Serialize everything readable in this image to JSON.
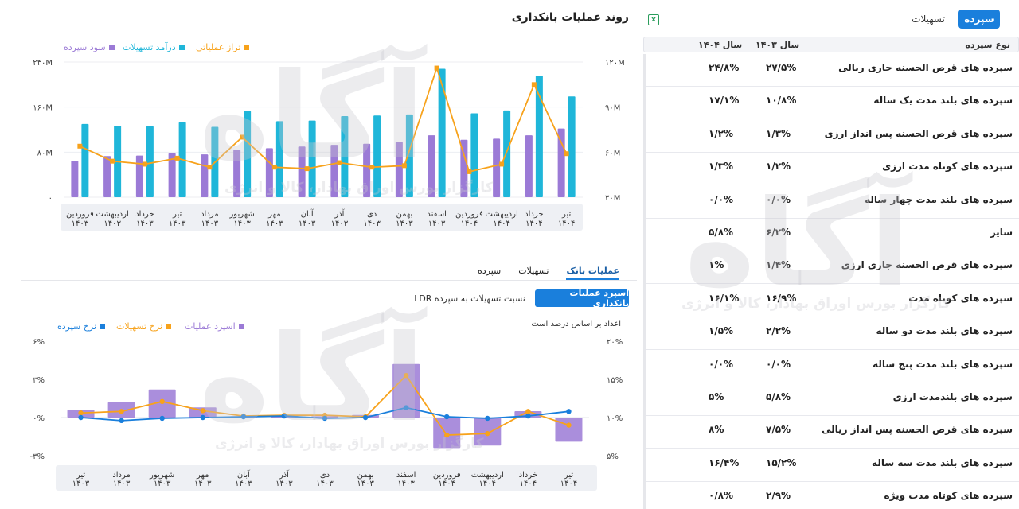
{
  "right_panel": {
    "tabs": {
      "deposit": "سپرده",
      "facilities": "تسهیلات"
    },
    "table_header": {
      "type": "نوع سپرده",
      "y1403": "سال ۱۴۰۳",
      "y1404": "سال ۱۴۰۴"
    },
    "rows": [
      {
        "name": "سپرده های قرض الحسنه جاری ریالی",
        "v1403": "۲۷/۵%",
        "v1404": "۲۴/۸%"
      },
      {
        "name": "سپرده های بلند مدت یک ساله",
        "v1403": "۱۰/۸%",
        "v1404": "۱۷/۱%"
      },
      {
        "name": "سپرده های قرض الحسنه پس انداز ارزی",
        "v1403": "۱/۳%",
        "v1404": "۱/۲%"
      },
      {
        "name": "سپرده های کوتاه مدت ارزی",
        "v1403": "۱/۲%",
        "v1404": "۱/۳%"
      },
      {
        "name": "سپرده های بلند مدت چهار ساله",
        "v1403": "۰/۰%",
        "v1404": "۰/۰%"
      },
      {
        "name": "سایر",
        "v1403": "۶/۲%",
        "v1404": "۵/۸%"
      },
      {
        "name": "سپرده های قرض الحسنه جاری ارزی",
        "v1403": "۱/۴%",
        "v1404": "۱%"
      },
      {
        "name": "سپرده های کوتاه مدت",
        "v1403": "۱۶/۹%",
        "v1404": "۱۶/۱%"
      },
      {
        "name": "سپرده های بلند مدت دو ساله",
        "v1403": "۲/۲%",
        "v1404": "۱/۵%"
      },
      {
        "name": "سپرده های بلند مدت پنج ساله",
        "v1403": "۰/۰%",
        "v1404": "۰/۰%"
      },
      {
        "name": "سپرده های بلندمدت ارزی",
        "v1403": "۵/۸%",
        "v1404": "۵%"
      },
      {
        "name": "سپرده های قرض الحسنه پس انداز ریالی",
        "v1403": "۷/۵%",
        "v1404": "۸%"
      },
      {
        "name": "سپرده های بلند مدت سه ساله",
        "v1403": "۱۵/۲%",
        "v1404": "۱۶/۴%"
      },
      {
        "name": "سپرده های کوتاه مدت ویژه",
        "v1403": "۲/۹%",
        "v1404": "۰/۸%"
      }
    ]
  },
  "left_panel": {
    "title": "روند عملیات بانکداری",
    "chart1_legend": {
      "operating": "تراز عملیاتی",
      "facility_income": "درآمد تسهیلات",
      "deposit_profit": "سود سپرده"
    },
    "tabs": [
      "سپرده",
      "تسهیلات",
      "عملیات بانک"
    ],
    "spread_button": "اسپرد عملیات بانکداری",
    "ldr_button": "نسبت تسهیلات به سپرده LDR",
    "note": "اعداد بر اساس درصد است",
    "chart2_legend": {
      "spread": "اسپرد عملیات",
      "facility_rate": "نرخ تسهیلات",
      "deposit_rate": "نرخ سپرده"
    }
  },
  "watermark": {
    "logo": "آگاه",
    "subtitle": "کارگزار بورس اوراق بهادار، کالا و انرژی"
  },
  "colors": {
    "accent": "#1a7fdc",
    "purple": "#9b7ad6",
    "cyan": "#1fb6d9",
    "orange": "#f7a21b",
    "blue": "#1a7fdc"
  },
  "chart_data": [
    {
      "type": "bar",
      "categories": [
        {
          "month": "فروردین",
          "year": "۱۴۰۳"
        },
        {
          "month": "اردیبهشت",
          "year": "۱۴۰۳"
        },
        {
          "month": "خرداد",
          "year": "۱۴۰۳"
        },
        {
          "month": "تیر",
          "year": "۱۴۰۳"
        },
        {
          "month": "مرداد",
          "year": "۱۴۰۳"
        },
        {
          "month": "شهریور",
          "year": "۱۴۰۳"
        },
        {
          "month": "مهر",
          "year": "۱۴۰۳"
        },
        {
          "month": "آبان",
          "year": "۱۴۰۳"
        },
        {
          "month": "آذر",
          "year": "۱۴۰۳"
        },
        {
          "month": "دی",
          "year": "۱۴۰۳"
        },
        {
          "month": "بهمن",
          "year": "۱۴۰۳"
        },
        {
          "month": "اسفند",
          "year": "۱۴۰۳"
        },
        {
          "month": "فروردین",
          "year": "۱۴۰۴"
        },
        {
          "month": "اردیبهشت",
          "year": "۱۴۰۴"
        },
        {
          "month": "خرداد",
          "year": "۱۴۰۴"
        },
        {
          "month": "تیر",
          "year": "۱۴۰۴"
        }
      ],
      "left_axis": {
        "ticks": [
          "۰",
          "۸۰M",
          "۱۶۰M",
          "۲۴۰M"
        ],
        "range": [
          0,
          240
        ]
      },
      "right_axis": {
        "ticks": [
          "۳۰M",
          "۶۰M",
          "۹۰M",
          "۱۲۰M"
        ],
        "range": [
          30,
          120
        ]
      },
      "series": [
        {
          "name": "سود سپرده",
          "type": "bar",
          "axis": "left",
          "color": "#9b7ad6",
          "values": [
            65,
            73,
            74,
            78,
            76,
            84,
            87,
            90,
            93,
            95,
            98,
            110,
            102,
            104,
            110,
            122
          ]
        },
        {
          "name": "درآمد تسهیلات",
          "type": "bar",
          "axis": "left",
          "color": "#1fb6d9",
          "values": [
            130,
            127,
            126,
            133,
            125,
            153,
            135,
            136,
            144,
            145,
            147,
            228,
            149,
            154,
            216,
            179
          ]
        },
        {
          "name": "تراز عملیاتی",
          "type": "line",
          "axis": "right",
          "color": "#f7a21b",
          "values": [
            64,
            54,
            52,
            56,
            50,
            70,
            50,
            49,
            53,
            50,
            51,
            116,
            47,
            52,
            105,
            59
          ]
        }
      ]
    },
    {
      "type": "bar",
      "categories": [
        {
          "month": "تیر",
          "year": "۱۴۰۳"
        },
        {
          "month": "مرداد",
          "year": "۱۴۰۳"
        },
        {
          "month": "شهریور",
          "year": "۱۴۰۳"
        },
        {
          "month": "مهر",
          "year": "۱۴۰۳"
        },
        {
          "month": "آبان",
          "year": "۱۴۰۳"
        },
        {
          "month": "آذر",
          "year": "۱۴۰۳"
        },
        {
          "month": "دی",
          "year": "۱۴۰۳"
        },
        {
          "month": "بهمن",
          "year": "۱۴۰۳"
        },
        {
          "month": "اسفند",
          "year": "۱۴۰۳"
        },
        {
          "month": "فروردین",
          "year": "۱۴۰۴"
        },
        {
          "month": "اردیبهشت",
          "year": "۱۴۰۴"
        },
        {
          "month": "خرداد",
          "year": "۱۴۰۴"
        },
        {
          "month": "تیر",
          "year": "۱۴۰۴"
        }
      ],
      "left_axis": {
        "ticks": [
          "-۳%",
          "۰%",
          "۳%",
          "۶%"
        ],
        "range": [
          -3,
          6
        ]
      },
      "right_axis": {
        "ticks": [
          "۵%",
          "۱۰%",
          "۱۵%",
          "۲۰%"
        ],
        "range": [
          5,
          20
        ]
      },
      "series": [
        {
          "name": "اسپرد عملیات",
          "type": "bar",
          "axis": "left",
          "color": "#9b7ad6",
          "values": [
            0.6,
            1.2,
            2.2,
            0.8,
            0.1,
            0.2,
            0.1,
            0.2,
            4.2,
            -2.4,
            -2.2,
            0.5,
            -1.9
          ]
        },
        {
          "name": "نرخ تسهیلات",
          "type": "line",
          "axis": "right",
          "color": "#f7a21b",
          "values": [
            10.6,
            10.8,
            12.1,
            10.9,
            10.2,
            10.3,
            10.3,
            10.1,
            15.5,
            7.7,
            7.9,
            10.8,
            9.0
          ]
        },
        {
          "name": "نرخ سپرده",
          "type": "line",
          "axis": "right",
          "color": "#1a7fdc",
          "values": [
            10.0,
            9.6,
            9.9,
            10.0,
            10.1,
            10.2,
            9.9,
            10.0,
            11.3,
            10.1,
            9.9,
            10.2,
            10.8
          ]
        }
      ]
    }
  ]
}
